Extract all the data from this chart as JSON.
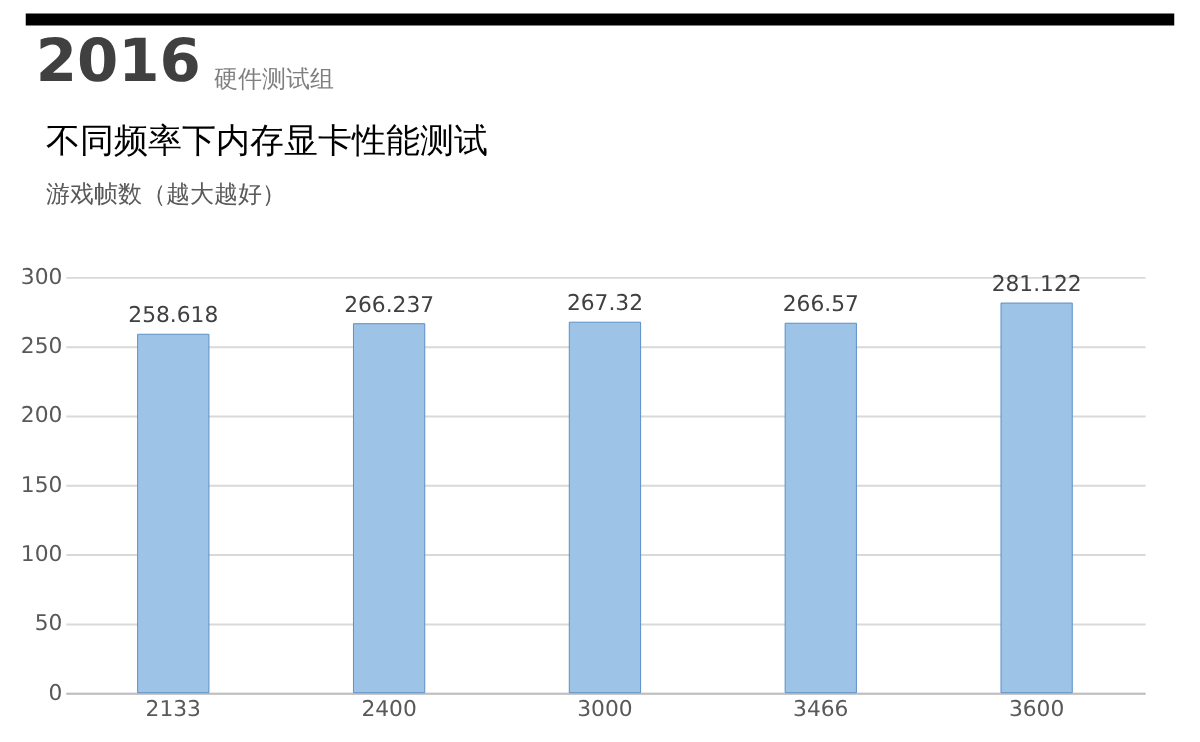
{
  "chart_data": {
    "type": "bar",
    "title": "不同频率下内存显卡性能测试",
    "subtitle": "游戏帧数（越大越好）",
    "annotations": [
      "2016",
      "硬件测试组"
    ],
    "categories": [
      "2133",
      "2400",
      "3000",
      "3466",
      "3600"
    ],
    "values": [
      258.618,
      266.237,
      267.32,
      266.57,
      281.122
    ],
    "color": "#9dc3e6",
    "data_labels": true,
    "ylim": [
      0,
      300
    ],
    "yticks": [
      0,
      50,
      100,
      150,
      200,
      250,
      300
    ],
    "grid": "y"
  }
}
